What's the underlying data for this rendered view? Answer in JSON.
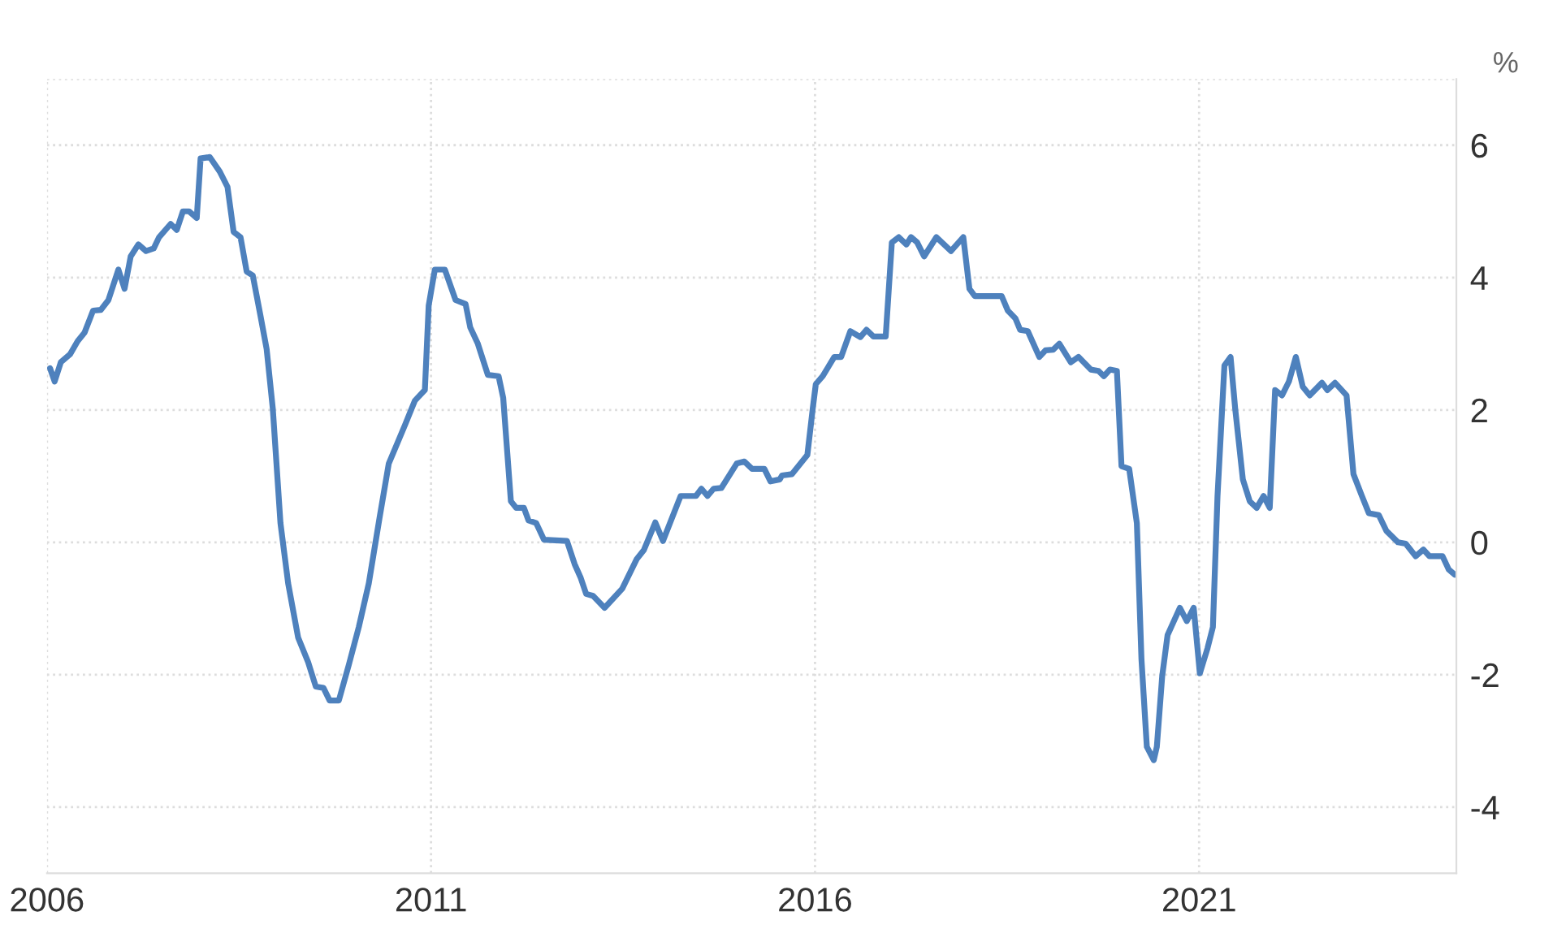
{
  "chart_data": {
    "type": "line",
    "ylabel": "%",
    "x": [
      2006.04,
      2006.1,
      2006.18,
      2006.3,
      2006.4,
      2006.49,
      2006.6,
      2006.7,
      2006.8,
      2006.93,
      2007.01,
      2007.09,
      2007.19,
      2007.29,
      2007.39,
      2007.46,
      2007.61,
      2007.69,
      2007.77,
      2007.85,
      2007.95,
      2008.0,
      2008.12,
      2008.25,
      2008.35,
      2008.43,
      2008.52,
      2008.6,
      2008.68,
      2008.78,
      2008.86,
      2008.94,
      2009.04,
      2009.14,
      2009.27,
      2009.4,
      2009.5,
      2009.6,
      2009.68,
      2009.8,
      2009.93,
      2010.06,
      2010.19,
      2010.33,
      2010.45,
      2010.66,
      2010.79,
      2010.92,
      2010.97,
      2011.05,
      2011.18,
      2011.32,
      2011.45,
      2011.51,
      2011.61,
      2011.74,
      2011.88,
      2011.94,
      2012.04,
      2012.11,
      2012.21,
      2012.27,
      2012.37,
      2012.47,
      2012.77,
      2012.87,
      2012.95,
      2013.02,
      2013.11,
      2013.26,
      2013.49,
      2013.68,
      2013.77,
      2013.92,
      2014.02,
      2014.25,
      2014.45,
      2014.52,
      2014.6,
      2014.68,
      2014.78,
      2014.98,
      2015.08,
      2015.18,
      2015.34,
      2015.42,
      2015.54,
      2015.57,
      2015.7,
      2015.9,
      2015.97,
      2016.01,
      2016.1,
      2016.25,
      2016.34,
      2016.46,
      2016.59,
      2016.67,
      2016.76,
      2016.92,
      2017.0,
      2017.09,
      2017.19,
      2017.25,
      2017.33,
      2017.42,
      2017.58,
      2017.77,
      2017.93,
      2018.01,
      2018.08,
      2018.43,
      2018.51,
      2018.61,
      2018.67,
      2018.77,
      2018.92,
      2019.0,
      2019.1,
      2019.18,
      2019.33,
      2019.43,
      2019.59,
      2019.69,
      2019.76,
      2019.84,
      2019.93,
      2019.99,
      2020.09,
      2020.19,
      2020.25,
      2020.32,
      2020.41,
      2020.45,
      2020.52,
      2020.59,
      2020.75,
      2020.84,
      2020.93,
      2021.01,
      2021.11,
      2021.18,
      2021.24,
      2021.33,
      2021.41,
      2021.47,
      2021.57,
      2021.66,
      2021.75,
      2021.84,
      2021.92,
      2021.99,
      2022.08,
      2022.17,
      2022.26,
      2022.35,
      2022.44,
      2022.6,
      2022.67,
      2022.77,
      2022.92,
      2023.01,
      2023.12,
      2023.21,
      2023.34,
      2023.44,
      2023.59,
      2023.69,
      2023.82,
      2023.92,
      2024.0,
      2024.17,
      2024.25,
      2024.33
    ],
    "series": [
      {
        "color": "#4e81bd",
        "values": [
          2.63,
          2.43,
          2.72,
          2.84,
          3.04,
          3.17,
          3.5,
          3.51,
          3.66,
          4.12,
          3.83,
          4.32,
          4.5,
          4.4,
          4.44,
          4.61,
          4.81,
          4.72,
          5.0,
          5.0,
          4.9,
          5.8,
          5.82,
          5.6,
          5.37,
          4.69,
          4.61,
          4.09,
          4.03,
          3.42,
          2.92,
          2.02,
          0.29,
          -0.62,
          -1.44,
          -1.81,
          -2.18,
          -2.2,
          -2.39,
          -2.39,
          -1.85,
          -1.28,
          -0.62,
          0.37,
          1.19,
          1.77,
          2.14,
          2.3,
          3.58,
          4.12,
          4.12,
          3.66,
          3.6,
          3.25,
          3.0,
          2.53,
          2.51,
          2.18,
          0.62,
          0.52,
          0.52,
          0.33,
          0.29,
          0.04,
          0.02,
          -0.33,
          -0.54,
          -0.78,
          -0.81,
          -0.99,
          -0.7,
          -0.25,
          -0.12,
          0.3,
          0.02,
          0.7,
          0.7,
          0.81,
          0.7,
          0.81,
          0.82,
          1.19,
          1.22,
          1.11,
          1.11,
          0.92,
          0.95,
          1.01,
          1.03,
          1.32,
          2.02,
          2.39,
          2.51,
          2.8,
          2.8,
          3.19,
          3.1,
          3.21,
          3.11,
          3.11,
          4.53,
          4.61,
          4.5,
          4.61,
          4.53,
          4.32,
          4.61,
          4.4,
          4.61,
          3.83,
          3.72,
          3.72,
          3.5,
          3.38,
          3.21,
          3.19,
          2.8,
          2.9,
          2.91,
          3.0,
          2.72,
          2.8,
          2.61,
          2.59,
          2.51,
          2.61,
          2.59,
          1.15,
          1.11,
          0.29,
          -1.77,
          -3.09,
          -3.29,
          -3.09,
          -2.02,
          -1.4,
          -0.99,
          -1.19,
          -0.99,
          -1.98,
          -1.6,
          -1.28,
          0.7,
          2.67,
          2.8,
          2.02,
          0.95,
          0.62,
          0.52,
          0.7,
          0.52,
          2.3,
          2.22,
          2.43,
          2.8,
          2.35,
          2.22,
          2.41,
          2.3,
          2.41,
          2.22,
          1.03,
          0.7,
          0.44,
          0.41,
          0.17,
          0.0,
          -0.02,
          -0.21,
          -0.11,
          -0.21,
          -0.21,
          -0.41,
          -0.49
        ]
      }
    ],
    "xlim": [
      2006,
      2024.35
    ],
    "xticks": [
      2006,
      2011,
      2016,
      2021
    ],
    "ylim": [
      -5,
      7
    ],
    "yticks": [
      -4,
      -2,
      0,
      2,
      4,
      6,
      {
        "value": 7,
        "label": null
      }
    ],
    "grid": true,
    "line_style": "solid",
    "marker": "none"
  }
}
